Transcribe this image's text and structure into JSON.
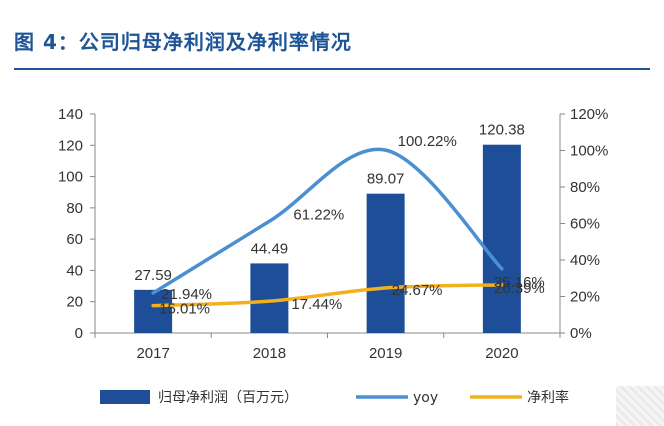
{
  "title": "图 4：公司归母净利润及净利率情况",
  "chart_data": {
    "type": "bar",
    "categories": [
      "2017",
      "2018",
      "2019",
      "2020"
    ],
    "series": [
      {
        "name": "归母净利润（百万元）",
        "type": "bar",
        "axis": "left",
        "color": "#1f4e99",
        "values": [
          27.59,
          44.49,
          89.07,
          120.38
        ],
        "labels": [
          "27.59",
          "44.49",
          "89.07",
          "120.38"
        ]
      },
      {
        "name": "yoy",
        "type": "line",
        "axis": "right",
        "color": "#4a90d0",
        "values": [
          21.94,
          61.22,
          100.22,
          35.16
        ],
        "labels": [
          "21.94%",
          "61.22%",
          "100.22%",
          "35.16%"
        ]
      },
      {
        "name": "净利率",
        "type": "line",
        "axis": "right",
        "color": "#f2b01e",
        "values": [
          15.01,
          17.44,
          24.67,
          26.39
        ],
        "labels": [
          "15.01%",
          "17.44%",
          "24.67%",
          "26.39%"
        ]
      }
    ],
    "ylim_left": [
      0,
      140
    ],
    "yticks_left": [
      "0",
      "20",
      "40",
      "60",
      "80",
      "100",
      "120",
      "140"
    ],
    "ylim_right": [
      0,
      120
    ],
    "yticks_right": [
      "0%",
      "20%",
      "40%",
      "60%",
      "80%",
      "100%",
      "120%"
    ],
    "grid": false,
    "legend_position": "bottom"
  }
}
